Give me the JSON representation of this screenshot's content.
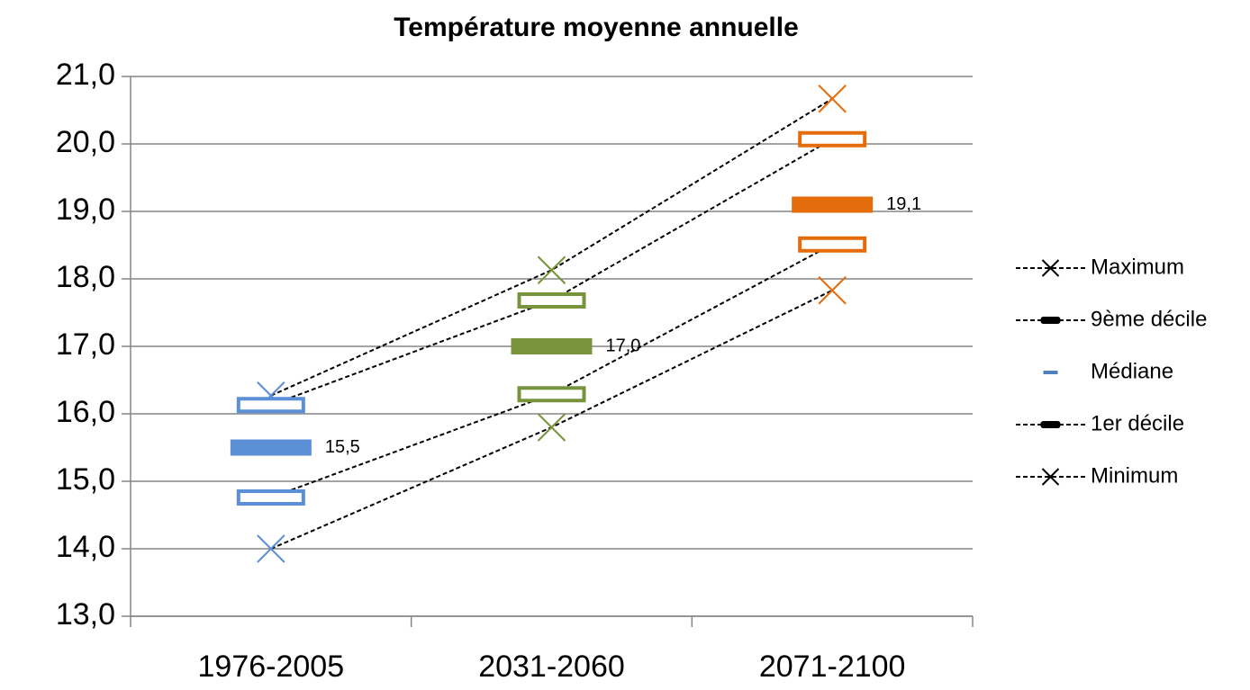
{
  "chart_data": {
    "type": "line",
    "title": "Température moyenne annuelle",
    "categories": [
      "1976-2005",
      "2031-2060",
      "2071-2100"
    ],
    "category_colors": [
      "#5b8fd6",
      "#77933c",
      "#e46c0a"
    ],
    "ylim": [
      13,
      21
    ],
    "yticks": [
      {
        "value": 13,
        "label": "13,0"
      },
      {
        "value": 14,
        "label": "14,0"
      },
      {
        "value": 15,
        "label": "15,0"
      },
      {
        "value": 16,
        "label": "16,0"
      },
      {
        "value": 17,
        "label": "17,0"
      },
      {
        "value": 18,
        "label": "18,0"
      },
      {
        "value": 19,
        "label": "19,0"
      },
      {
        "value": 20,
        "label": "20,0"
      },
      {
        "value": 21,
        "label": "21,0"
      }
    ],
    "grid": true,
    "legend": "right",
    "series": [
      {
        "name": "Maximum",
        "color": "#000000",
        "marker": "x",
        "line": "dashed",
        "values": [
          16.27,
          18.13,
          20.67
        ]
      },
      {
        "name": "9ème décile",
        "color": "#000000",
        "marker": "hollow-bar",
        "line": "dashed",
        "values": [
          16.13,
          17.68,
          20.07
        ]
      },
      {
        "name": "Médiane",
        "color": "#4f81bd",
        "marker": "bar",
        "line": "none",
        "values": [
          15.5,
          17.0,
          19.1
        ],
        "value_labels": [
          "15,5",
          "17,0",
          "19,1"
        ]
      },
      {
        "name": "1er décile",
        "color": "#000000",
        "marker": "hollow-bar",
        "line": "dashed",
        "values": [
          14.76,
          16.29,
          18.51
        ]
      },
      {
        "name": "Minimum",
        "color": "#000000",
        "marker": "x",
        "line": "dashed",
        "values": [
          14.0,
          15.8,
          17.83
        ]
      }
    ]
  }
}
